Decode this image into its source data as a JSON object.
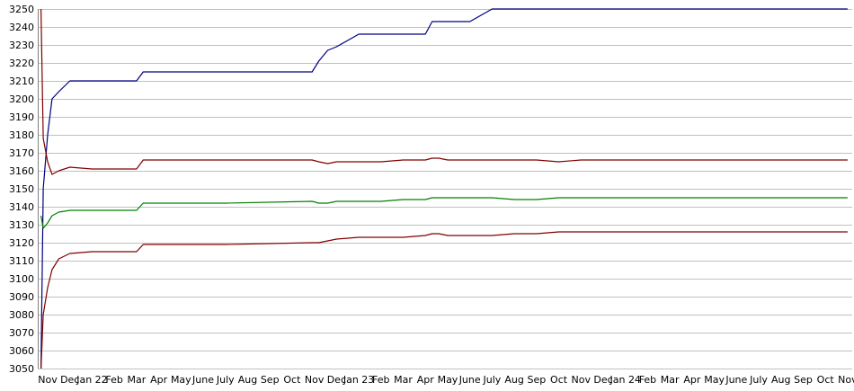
{
  "chart_data": {
    "type": "line",
    "title": "",
    "xlabel": "",
    "ylabel": "",
    "ylim": [
      3050,
      3250
    ],
    "yticks": [
      3050,
      3060,
      3070,
      3080,
      3090,
      3100,
      3110,
      3120,
      3130,
      3140,
      3150,
      3160,
      3170,
      3180,
      3190,
      3200,
      3210,
      3220,
      3230,
      3240,
      3250
    ],
    "grid": true,
    "legend": "none",
    "x_tick_labels": [
      "Nov",
      "Dec",
      "Jan 22",
      "Feb",
      "Mar",
      "Apr",
      "May",
      "June",
      "July",
      "Aug",
      "Sep",
      "Oct",
      "Nov",
      "Dec",
      "Jan 23",
      "Feb",
      "Mar",
      "Apr",
      "May",
      "June",
      "July",
      "Aug",
      "Sep",
      "Oct",
      "Nov",
      "Dec",
      "Jan 24",
      "Feb",
      "Mar",
      "Apr",
      "May",
      "June",
      "July",
      "Aug",
      "Sep",
      "Oct",
      "Nov"
    ],
    "x": [
      -0.3,
      -0.2,
      0.0,
      0.2,
      0.5,
      1.0,
      2.0,
      3.0,
      4.0,
      4.3,
      5.0,
      8.0,
      11.9,
      12.2,
      12.6,
      13.0,
      14.0,
      15.0,
      16.0,
      17.0,
      17.3,
      17.6,
      18.0,
      19.0,
      20.0,
      21.0,
      22.0,
      23.0,
      24.0,
      25.0,
      26.0,
      27.0,
      28.0,
      29.0,
      30.0,
      31.0,
      32.0,
      33.0,
      34.0,
      35.0,
      36.0
    ],
    "series": [
      {
        "color": "#000080",
        "values": [
          3050,
          3150,
          3180,
          3200,
          3204,
          3210,
          3210,
          3210,
          3210,
          3215,
          3215,
          3215,
          3215,
          3221,
          3227,
          3229,
          3236,
          3236,
          3236,
          3236,
          3243,
          3243,
          3243,
          3243,
          3250,
          3250,
          3250,
          3250,
          3250,
          3250,
          3250,
          3250,
          3250,
          3250,
          3250,
          3250,
          3250,
          3250,
          3250,
          3250,
          3250
        ]
      },
      {
        "color": "#800000",
        "values": [
          3250,
          3178,
          3165,
          3158,
          3160,
          3162,
          3161,
          3161,
          3161,
          3166,
          3166,
          3166,
          3166,
          3165,
          3164,
          3165,
          3165,
          3165,
          3166,
          3166,
          3167,
          3167,
          3166,
          3166,
          3166,
          3166,
          3166,
          3165,
          3166,
          3166,
          3166,
          3166,
          3166,
          3166,
          3166,
          3166,
          3166,
          3166,
          3166,
          3166,
          3166
        ]
      },
      {
        "color": "#008000",
        "values": [
          3135,
          3128,
          3131,
          3135,
          3137,
          3138,
          3138,
          3138,
          3138,
          3142,
          3142,
          3142,
          3143,
          3142,
          3142,
          3143,
          3143,
          3143,
          3144,
          3144,
          3145,
          3145,
          3145,
          3145,
          3145,
          3144,
          3144,
          3145,
          3145,
          3145,
          3145,
          3145,
          3145,
          3145,
          3145,
          3145,
          3145,
          3145,
          3145,
          3145,
          3145
        ]
      },
      {
        "color": "#800000",
        "values": [
          3050,
          3080,
          3095,
          3105,
          3111,
          3114,
          3115,
          3115,
          3115,
          3119,
          3119,
          3119,
          3120,
          3120,
          3121,
          3122,
          3123,
          3123,
          3123,
          3124,
          3125,
          3125,
          3124,
          3124,
          3124,
          3125,
          3125,
          3126,
          3126,
          3126,
          3126,
          3126,
          3126,
          3126,
          3126,
          3126,
          3126,
          3126,
          3126,
          3126,
          3126
        ]
      }
    ]
  }
}
